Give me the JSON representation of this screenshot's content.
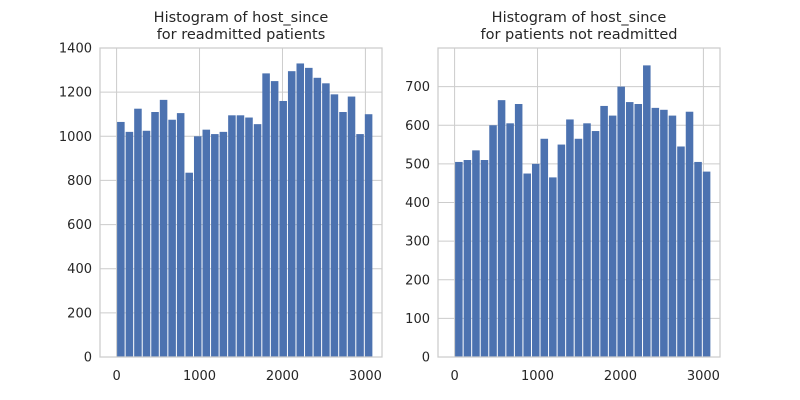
{
  "chart_data": [
    {
      "type": "bar",
      "title_line1": "Histogram of host_since",
      "title_line2": "for readmitted patients",
      "xlabel": "",
      "ylabel": "",
      "bin_start": 0,
      "bin_width": 103,
      "values": [
        1065,
        1020,
        1125,
        1025,
        1110,
        1165,
        1075,
        1105,
        835,
        1000,
        1030,
        1010,
        1020,
        1095,
        1095,
        1085,
        1055,
        1285,
        1250,
        1160,
        1295,
        1330,
        1310,
        1265,
        1240,
        1190,
        1110,
        1180,
        1010,
        1100
      ],
      "xlim": [
        -200,
        3200
      ],
      "ylim": [
        0,
        1400
      ],
      "xticks": [
        0,
        1000,
        2000,
        3000
      ],
      "yticks": [
        0,
        200,
        400,
        600,
        800,
        1000,
        1200,
        1400
      ],
      "color": "#4c72b0",
      "grid": true
    },
    {
      "type": "bar",
      "title_line1": "Histogram of host_since",
      "title_line2": "for patients not readmitted",
      "xlabel": "",
      "ylabel": "",
      "bin_start": 0,
      "bin_width": 103,
      "values": [
        505,
        510,
        535,
        510,
        600,
        665,
        605,
        655,
        475,
        500,
        565,
        465,
        550,
        615,
        565,
        605,
        585,
        650,
        625,
        700,
        660,
        655,
        755,
        645,
        640,
        625,
        545,
        635,
        505,
        480
      ],
      "xlim": [
        -200,
        3200
      ],
      "ylim": [
        0,
        800
      ],
      "xticks": [
        0,
        1000,
        2000,
        3000
      ],
      "yticks": [
        0,
        100,
        200,
        300,
        400,
        500,
        600,
        700
      ],
      "color": "#4c72b0",
      "grid": true
    }
  ]
}
